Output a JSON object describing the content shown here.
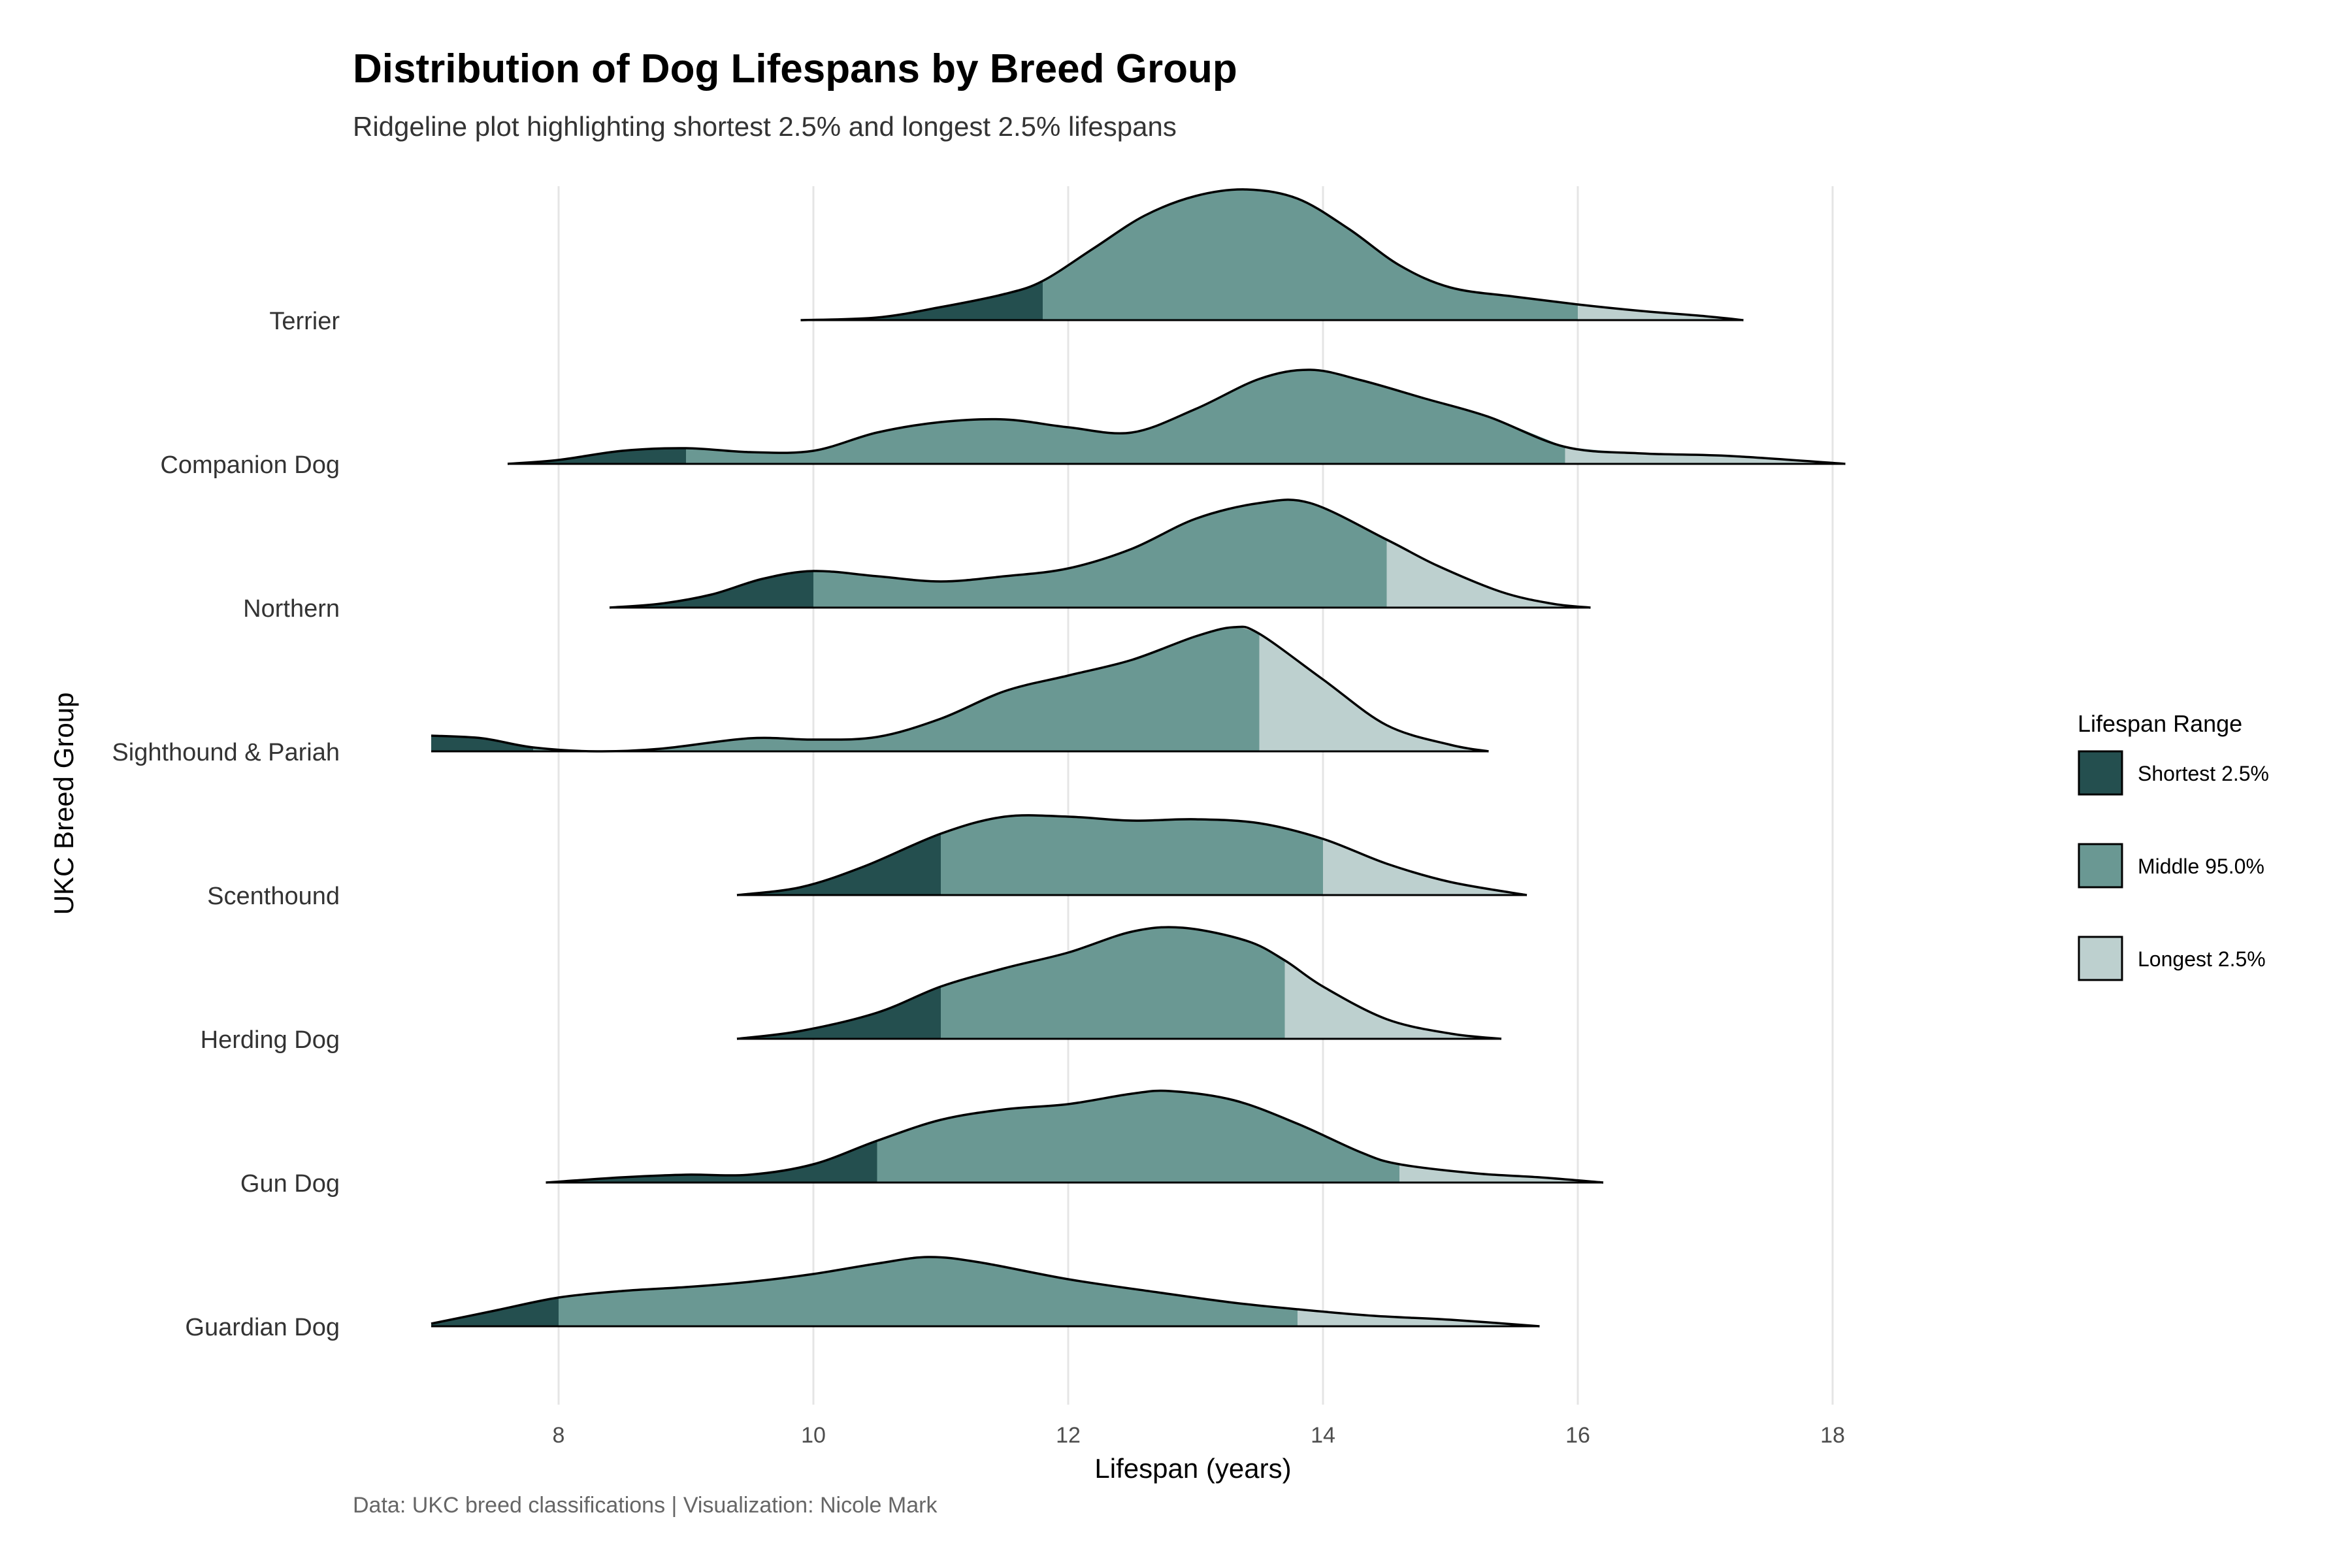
{
  "chart_data": {
    "type": "ridgeline",
    "title": "Distribution of Dog Lifespans by Breed Group",
    "subtitle": "Ridgeline plot highlighting shortest 2.5% and longest 2.5% lifespans",
    "xlabel": "Lifespan (years)",
    "ylabel": "UKC Breed Group",
    "caption": "Data: UKC breed classifications | Visualization: Nicole Mark",
    "xlim": [
      6.8,
      18.2
    ],
    "x_ticks": [
      8,
      10,
      12,
      14,
      16,
      18
    ],
    "grid": "vertical major gridlines",
    "legend": {
      "title": "Lifespan Range",
      "placement": "right",
      "entries": [
        {
          "label": "Shortest 2.5%",
          "color": "#244f4f"
        },
        {
          "label": "Middle 95.0%",
          "color": "#6a9893"
        },
        {
          "label": "Longest 2.5%",
          "color": "#bdd0cf"
        }
      ]
    },
    "colors": {
      "shortest": "#244f4f",
      "middle": "#6a9893",
      "longest": "#bdd0cf",
      "outline": "#000000",
      "grid": "#e5e5e5"
    },
    "groups": [
      {
        "name": "Terrier",
        "q_low": 11.8,
        "q_high": 16.0,
        "density": [
          [
            9.9,
            0.0
          ],
          [
            10.5,
            0.02
          ],
          [
            11.0,
            0.1
          ],
          [
            11.5,
            0.2
          ],
          [
            11.8,
            0.3
          ],
          [
            12.2,
            0.55
          ],
          [
            12.6,
            0.8
          ],
          [
            13.0,
            0.95
          ],
          [
            13.4,
            1.0
          ],
          [
            13.8,
            0.93
          ],
          [
            14.2,
            0.7
          ],
          [
            14.6,
            0.42
          ],
          [
            15.0,
            0.25
          ],
          [
            15.5,
            0.18
          ],
          [
            16.0,
            0.12
          ],
          [
            16.5,
            0.07
          ],
          [
            17.0,
            0.03
          ],
          [
            17.3,
            0.0
          ]
        ]
      },
      {
        "name": "Companion Dog",
        "q_low": 9.0,
        "q_high": 15.9,
        "density": [
          [
            7.6,
            0.0
          ],
          [
            8.0,
            0.03
          ],
          [
            8.5,
            0.1
          ],
          [
            9.0,
            0.12
          ],
          [
            9.5,
            0.09
          ],
          [
            10.0,
            0.1
          ],
          [
            10.5,
            0.24
          ],
          [
            11.0,
            0.32
          ],
          [
            11.5,
            0.34
          ],
          [
            12.0,
            0.28
          ],
          [
            12.5,
            0.24
          ],
          [
            13.0,
            0.42
          ],
          [
            13.5,
            0.65
          ],
          [
            13.9,
            0.72
          ],
          [
            14.3,
            0.64
          ],
          [
            14.8,
            0.5
          ],
          [
            15.3,
            0.36
          ],
          [
            15.9,
            0.13
          ],
          [
            16.5,
            0.08
          ],
          [
            17.2,
            0.06
          ],
          [
            18.1,
            0.0
          ]
        ]
      },
      {
        "name": "Northern",
        "q_low": 10.0,
        "q_high": 14.5,
        "density": [
          [
            8.4,
            0.0
          ],
          [
            8.8,
            0.03
          ],
          [
            9.2,
            0.1
          ],
          [
            9.6,
            0.22
          ],
          [
            10.0,
            0.28
          ],
          [
            10.5,
            0.24
          ],
          [
            11.0,
            0.2
          ],
          [
            11.5,
            0.24
          ],
          [
            12.0,
            0.3
          ],
          [
            12.5,
            0.45
          ],
          [
            13.0,
            0.68
          ],
          [
            13.5,
            0.8
          ],
          [
            13.9,
            0.8
          ],
          [
            14.5,
            0.52
          ],
          [
            14.9,
            0.32
          ],
          [
            15.4,
            0.12
          ],
          [
            15.8,
            0.03
          ],
          [
            16.1,
            0.0
          ]
        ]
      },
      {
        "name": "Sighthound & Pariah",
        "q_low": 7.8,
        "q_high": 13.5,
        "density": [
          [
            7.0,
            0.12
          ],
          [
            7.4,
            0.1
          ],
          [
            7.8,
            0.03
          ],
          [
            8.3,
            0.0
          ],
          [
            8.8,
            0.02
          ],
          [
            9.5,
            0.1
          ],
          [
            10.0,
            0.09
          ],
          [
            10.5,
            0.11
          ],
          [
            11.0,
            0.25
          ],
          [
            11.5,
            0.46
          ],
          [
            12.0,
            0.58
          ],
          [
            12.5,
            0.7
          ],
          [
            13.0,
            0.88
          ],
          [
            13.3,
            0.95
          ],
          [
            13.5,
            0.9
          ],
          [
            14.0,
            0.55
          ],
          [
            14.5,
            0.2
          ],
          [
            15.0,
            0.05
          ],
          [
            15.3,
            0.0
          ]
        ]
      },
      {
        "name": "Scenthound",
        "q_low": 11.0,
        "q_high": 14.0,
        "density": [
          [
            9.4,
            0.0
          ],
          [
            9.9,
            0.06
          ],
          [
            10.4,
            0.22
          ],
          [
            11.0,
            0.47
          ],
          [
            11.5,
            0.6
          ],
          [
            12.0,
            0.6
          ],
          [
            12.5,
            0.57
          ],
          [
            13.0,
            0.58
          ],
          [
            13.5,
            0.55
          ],
          [
            14.0,
            0.43
          ],
          [
            14.5,
            0.24
          ],
          [
            15.0,
            0.1
          ],
          [
            15.6,
            0.0
          ]
        ]
      },
      {
        "name": "Herding Dog",
        "q_low": 11.0,
        "q_high": 13.7,
        "density": [
          [
            9.4,
            0.0
          ],
          [
            9.9,
            0.06
          ],
          [
            10.5,
            0.2
          ],
          [
            11.0,
            0.4
          ],
          [
            11.5,
            0.54
          ],
          [
            12.0,
            0.66
          ],
          [
            12.5,
            0.82
          ],
          [
            12.9,
            0.85
          ],
          [
            13.4,
            0.75
          ],
          [
            13.7,
            0.6
          ],
          [
            14.0,
            0.4
          ],
          [
            14.5,
            0.15
          ],
          [
            15.0,
            0.04
          ],
          [
            15.4,
            0.0
          ]
        ]
      },
      {
        "name": "Gun Dog",
        "q_low": 10.5,
        "q_high": 14.6,
        "density": [
          [
            7.9,
            0.0
          ],
          [
            8.5,
            0.04
          ],
          [
            9.0,
            0.06
          ],
          [
            9.5,
            0.06
          ],
          [
            10.0,
            0.14
          ],
          [
            10.5,
            0.32
          ],
          [
            11.0,
            0.48
          ],
          [
            11.5,
            0.56
          ],
          [
            12.0,
            0.6
          ],
          [
            12.5,
            0.68
          ],
          [
            12.8,
            0.7
          ],
          [
            13.3,
            0.63
          ],
          [
            13.8,
            0.45
          ],
          [
            14.3,
            0.23
          ],
          [
            14.6,
            0.14
          ],
          [
            15.2,
            0.07
          ],
          [
            15.7,
            0.04
          ],
          [
            16.2,
            0.0
          ]
        ]
      },
      {
        "name": "Guardian Dog",
        "q_low": 8.0,
        "q_high": 13.8,
        "density": [
          [
            7.0,
            0.02
          ],
          [
            7.5,
            0.12
          ],
          [
            8.0,
            0.22
          ],
          [
            8.5,
            0.27
          ],
          [
            9.0,
            0.3
          ],
          [
            9.5,
            0.34
          ],
          [
            10.0,
            0.4
          ],
          [
            10.5,
            0.48
          ],
          [
            10.9,
            0.53
          ],
          [
            11.3,
            0.49
          ],
          [
            12.0,
            0.36
          ],
          [
            12.7,
            0.26
          ],
          [
            13.3,
            0.18
          ],
          [
            13.8,
            0.13
          ],
          [
            14.4,
            0.08
          ],
          [
            15.0,
            0.05
          ],
          [
            15.7,
            0.0
          ]
        ]
      }
    ]
  }
}
